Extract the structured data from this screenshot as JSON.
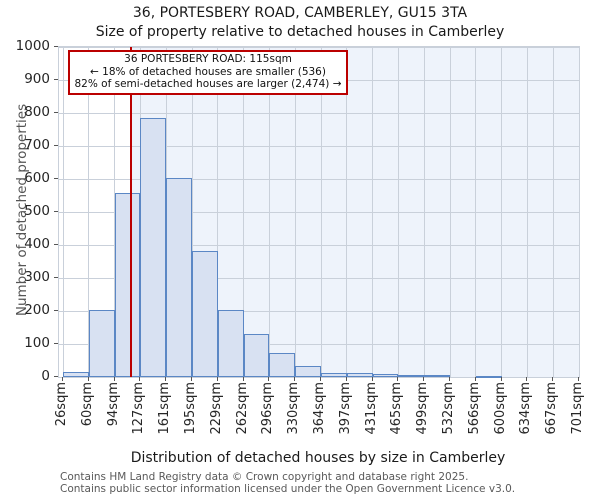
{
  "title": "36, PORTESBERY ROAD, CAMBERLEY, GU15 3TA",
  "subtitle": "Size of property relative to detached houses in Camberley",
  "chart_data": {
    "type": "bar",
    "title": "36, PORTESBERY ROAD, CAMBERLEY, GU15 3TA",
    "subtitle": "Size of property relative to detached houses in Camberley",
    "categories": [
      "26sqm",
      "60sqm",
      "94sqm",
      "127sqm",
      "161sqm",
      "195sqm",
      "229sqm",
      "262sqm",
      "296sqm",
      "330sqm",
      "364sqm",
      "397sqm",
      "431sqm",
      "465sqm",
      "499sqm",
      "532sqm",
      "566sqm",
      "600sqm",
      "634sqm",
      "667sqm",
      "701sqm"
    ],
    "bin_edges_sqm": [
      26,
      60,
      94,
      127,
      161,
      195,
      229,
      262,
      296,
      330,
      364,
      397,
      431,
      465,
      499,
      532,
      566,
      600,
      634,
      667,
      701
    ],
    "values": [
      15,
      203,
      558,
      786,
      604,
      382,
      203,
      131,
      72,
      33,
      12,
      12,
      10,
      5,
      6,
      0,
      4,
      0,
      0,
      0
    ],
    "ylim": [
      0,
      1000
    ],
    "yticks": [
      0,
      100,
      200,
      300,
      400,
      500,
      600,
      700,
      800,
      900,
      1000
    ],
    "xlabel": "Distribution of detached houses by size in Camberley",
    "ylabel": "Number of detached properties",
    "grid": "on",
    "marker": {
      "value_sqm": 115,
      "shaded_region": "right-of-marker"
    },
    "annotation": {
      "line1": "36 PORTESBERY ROAD: 115sqm",
      "line2": "← 18% of detached houses are smaller (536)",
      "line3": "82% of semi-detached houses are larger (2,474) →"
    },
    "colors": {
      "bar_fill": "#d8e1f2",
      "bar_border": "#5b87c5",
      "shade_fill": "#eef3fb",
      "gridline": "#c9d0da",
      "marker_line": "#bb0000",
      "annotation_border": "#bb0000"
    }
  },
  "footer": {
    "line1": "Contains HM Land Registry data © Crown copyright and database right 2025.",
    "line2": "Contains public sector information licensed under the Open Government Licence v3.0."
  }
}
